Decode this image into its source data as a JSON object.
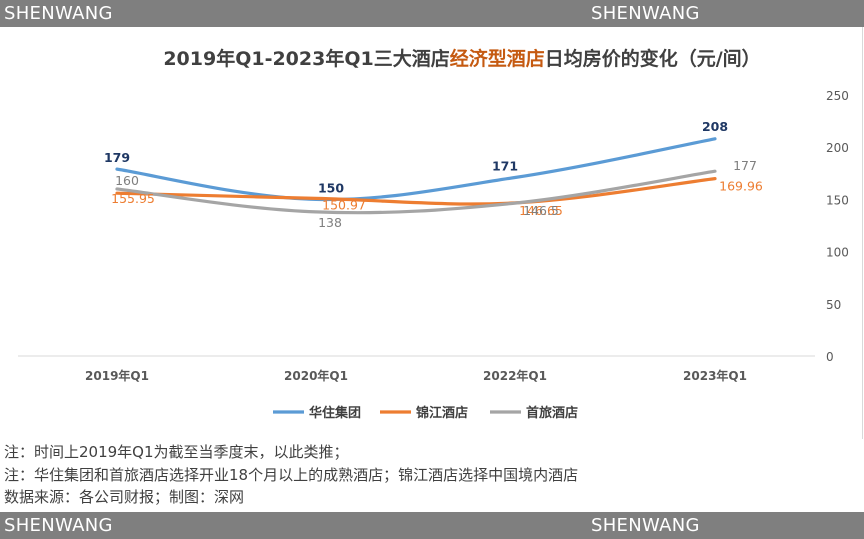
{
  "watermark": "SHENWANG",
  "chart_data": {
    "type": "line",
    "title_parts": [
      {
        "text": "2019年Q1-2023年Q1三大酒店",
        "highlight": false
      },
      {
        "text": "经济型酒店",
        "highlight": true
      },
      {
        "text": "日均房价的变化（元/间）",
        "highlight": false
      }
    ],
    "categories": [
      "2019年Q1",
      "2020年Q1",
      "2022年Q1",
      "2023年Q1"
    ],
    "ylim": [
      0,
      250
    ],
    "yticks": [
      "0",
      "50",
      "100",
      "150",
      "200",
      "250"
    ],
    "ytick_values": [
      0,
      50,
      100,
      150,
      200,
      250
    ],
    "grid": false,
    "legend_position": "bottom",
    "series": [
      {
        "name": "华住集团",
        "color": "#5b9bd5",
        "values": [
          179,
          150,
          171,
          208
        ],
        "labels": [
          "179",
          "150",
          "171",
          "208"
        ],
        "label_color": "#1f3864",
        "label_bold": true
      },
      {
        "name": "锦江酒店",
        "color": "#ed7d31",
        "values": [
          155.95,
          150.97,
          146.65,
          169.96
        ],
        "labels": [
          "155.95",
          "150.97",
          "146.65",
          "169.96"
        ],
        "label_color": "#ed7d31",
        "label_bold": false
      },
      {
        "name": "首旅酒店",
        "color": "#a5a5a5",
        "values": [
          160,
          138,
          146.5,
          177
        ],
        "labels": [
          "160",
          "138",
          "146.5",
          "177"
        ],
        "label_color": "#7f7f7f",
        "label_bold": false
      }
    ]
  },
  "notes": [
    "注：时间上2019年Q1为截至当季度末，以此类推；",
    "注：华住集团和首旅酒店选择开业18个月以上的成熟酒店；锦江酒店选择中国境内酒店",
    "数据来源：各公司财报；制图：深网"
  ],
  "colors": {
    "highlight": "#c55a11",
    "title": "#404040"
  }
}
